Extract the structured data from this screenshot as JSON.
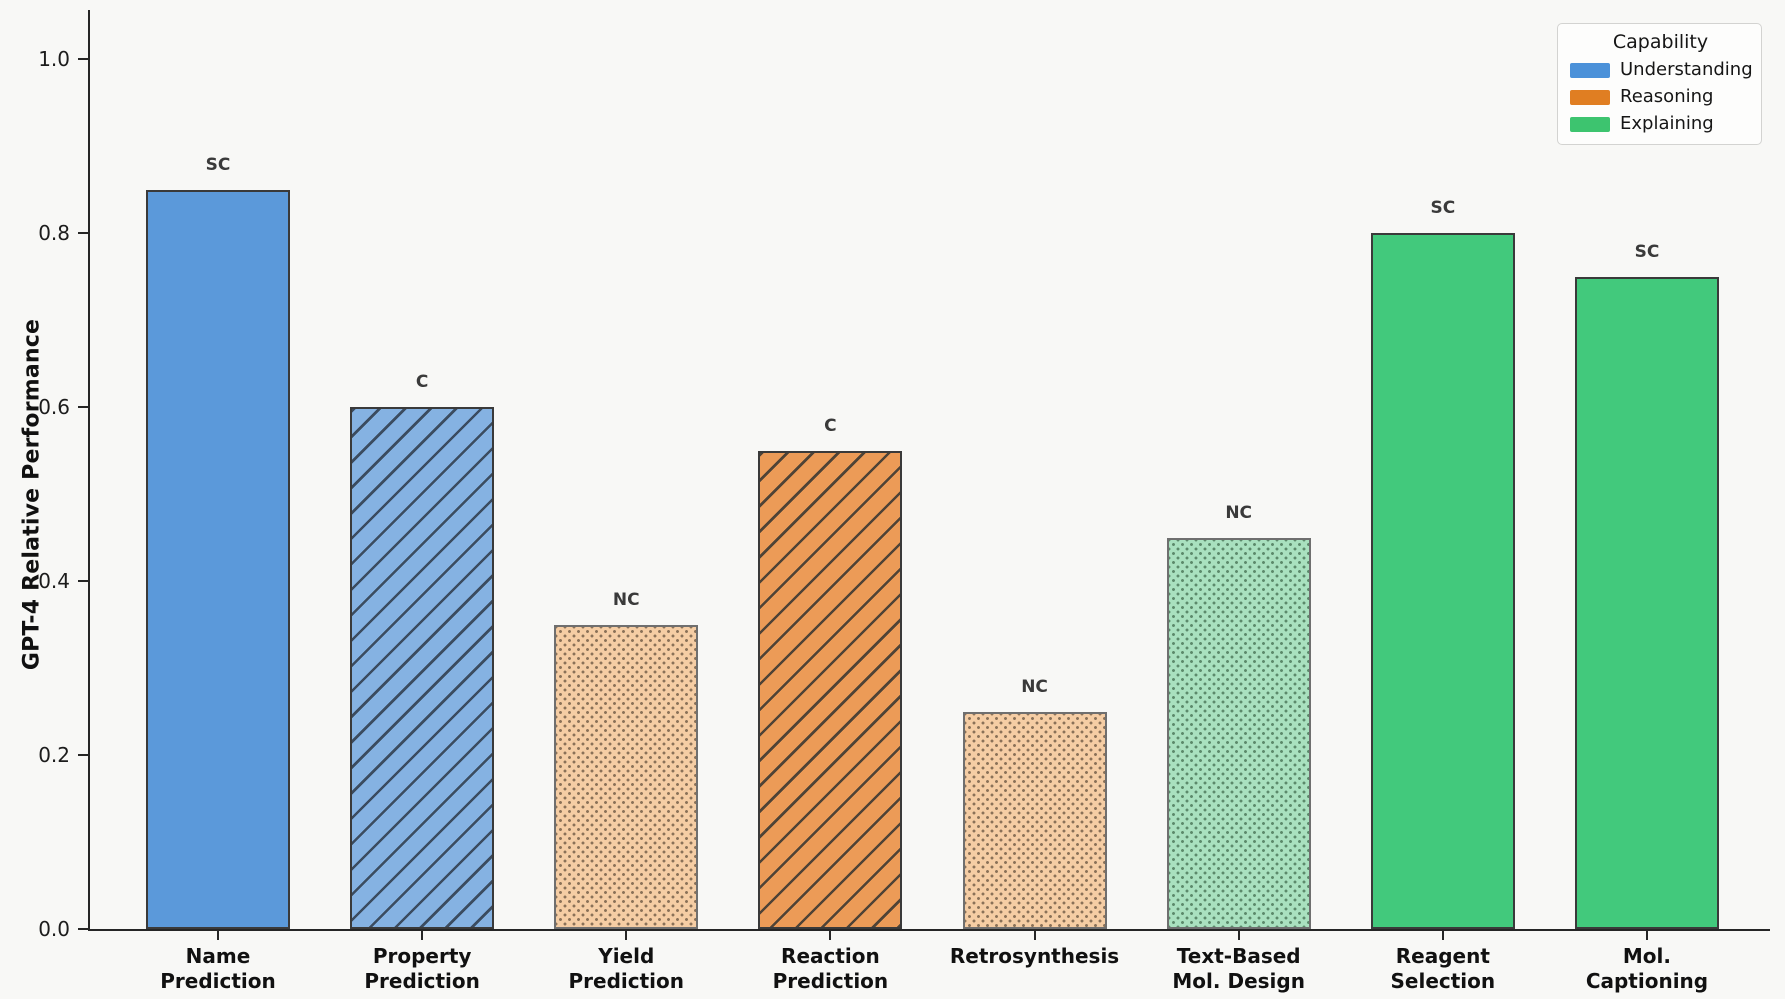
{
  "figure": {
    "background_color": "#f8f8f6",
    "axis_color": "#262626"
  },
  "chart_data": {
    "type": "bar",
    "title": "",
    "xlabel": "",
    "ylabel": "GPT-4 Relative Performance",
    "ylim": [
      0,
      1.06
    ],
    "yticks": [
      "0.0",
      "0.2",
      "0.4",
      "0.6",
      "0.8",
      "1.0"
    ],
    "grid": false,
    "legend": {
      "title": "Capability",
      "position": "upper-right",
      "entries": [
        {
          "label": "Understanding",
          "color": "#4b91d9"
        },
        {
          "label": "Reasoning",
          "color": "#e07e22"
        },
        {
          "label": "Explaining",
          "color": "#3dc46f"
        }
      ]
    },
    "categories": [
      "Name\nPrediction",
      "Property\nPrediction",
      "Yield\nPrediction",
      "Reaction\nPrediction",
      "Retrosynthesis",
      "Text-Based\nMol. Design",
      "Reagent\nSelection",
      "Mol.\nCaptioning"
    ],
    "values": [
      0.85,
      0.6,
      0.35,
      0.55,
      0.25,
      0.45,
      0.8,
      0.75
    ],
    "annotations": [
      "SC",
      "C",
      "NC",
      "C",
      "NC",
      "NC",
      "SC",
      "SC"
    ],
    "bars": [
      {
        "category": "Name\nPrediction",
        "value": 0.85,
        "annotation": "SC",
        "capability": "Understanding",
        "pattern": "solid",
        "fill": "#5b99da",
        "hatch": "",
        "edge": "#3a3a3a"
      },
      {
        "category": "Property\nPrediction",
        "value": 0.6,
        "annotation": "C",
        "capability": "Understanding",
        "pattern": "diagonal",
        "fill": "#85b2e2",
        "hatch": "#3b4c60",
        "edge": "#3a3a3a"
      },
      {
        "category": "Yield\nPrediction",
        "value": 0.35,
        "annotation": "NC",
        "capability": "Reasoning",
        "pattern": "dots",
        "fill": "#f5cda4",
        "hatch": "#8a7158",
        "edge": "#6f6f6f"
      },
      {
        "category": "Reaction\nPrediction",
        "value": 0.55,
        "annotation": "C",
        "capability": "Reasoning",
        "pattern": "diagonal",
        "fill": "#ec9b57",
        "hatch": "#4f4336",
        "edge": "#3a3a3a"
      },
      {
        "category": "Retrosynthesis",
        "value": 0.25,
        "annotation": "NC",
        "capability": "Reasoning",
        "pattern": "dots",
        "fill": "#f5cda4",
        "hatch": "#8a7158",
        "edge": "#6f6f6f"
      },
      {
        "category": "Text-Based\nMol. Design",
        "value": 0.45,
        "annotation": "NC",
        "capability": "Explaining",
        "pattern": "dots",
        "fill": "#a9e1bf",
        "hatch": "#5c8a6b",
        "edge": "#6f6f6f"
      },
      {
        "category": "Reagent\nSelection",
        "value": 0.8,
        "annotation": "SC",
        "capability": "Explaining",
        "pattern": "solid",
        "fill": "#42c97c",
        "hatch": "",
        "edge": "#3a3a3a"
      },
      {
        "category": "Mol.\nCaptioning",
        "value": 0.75,
        "annotation": "SC",
        "capability": "Explaining",
        "pattern": "solid",
        "fill": "#42c97c",
        "hatch": "",
        "edge": "#3a3a3a"
      }
    ]
  }
}
